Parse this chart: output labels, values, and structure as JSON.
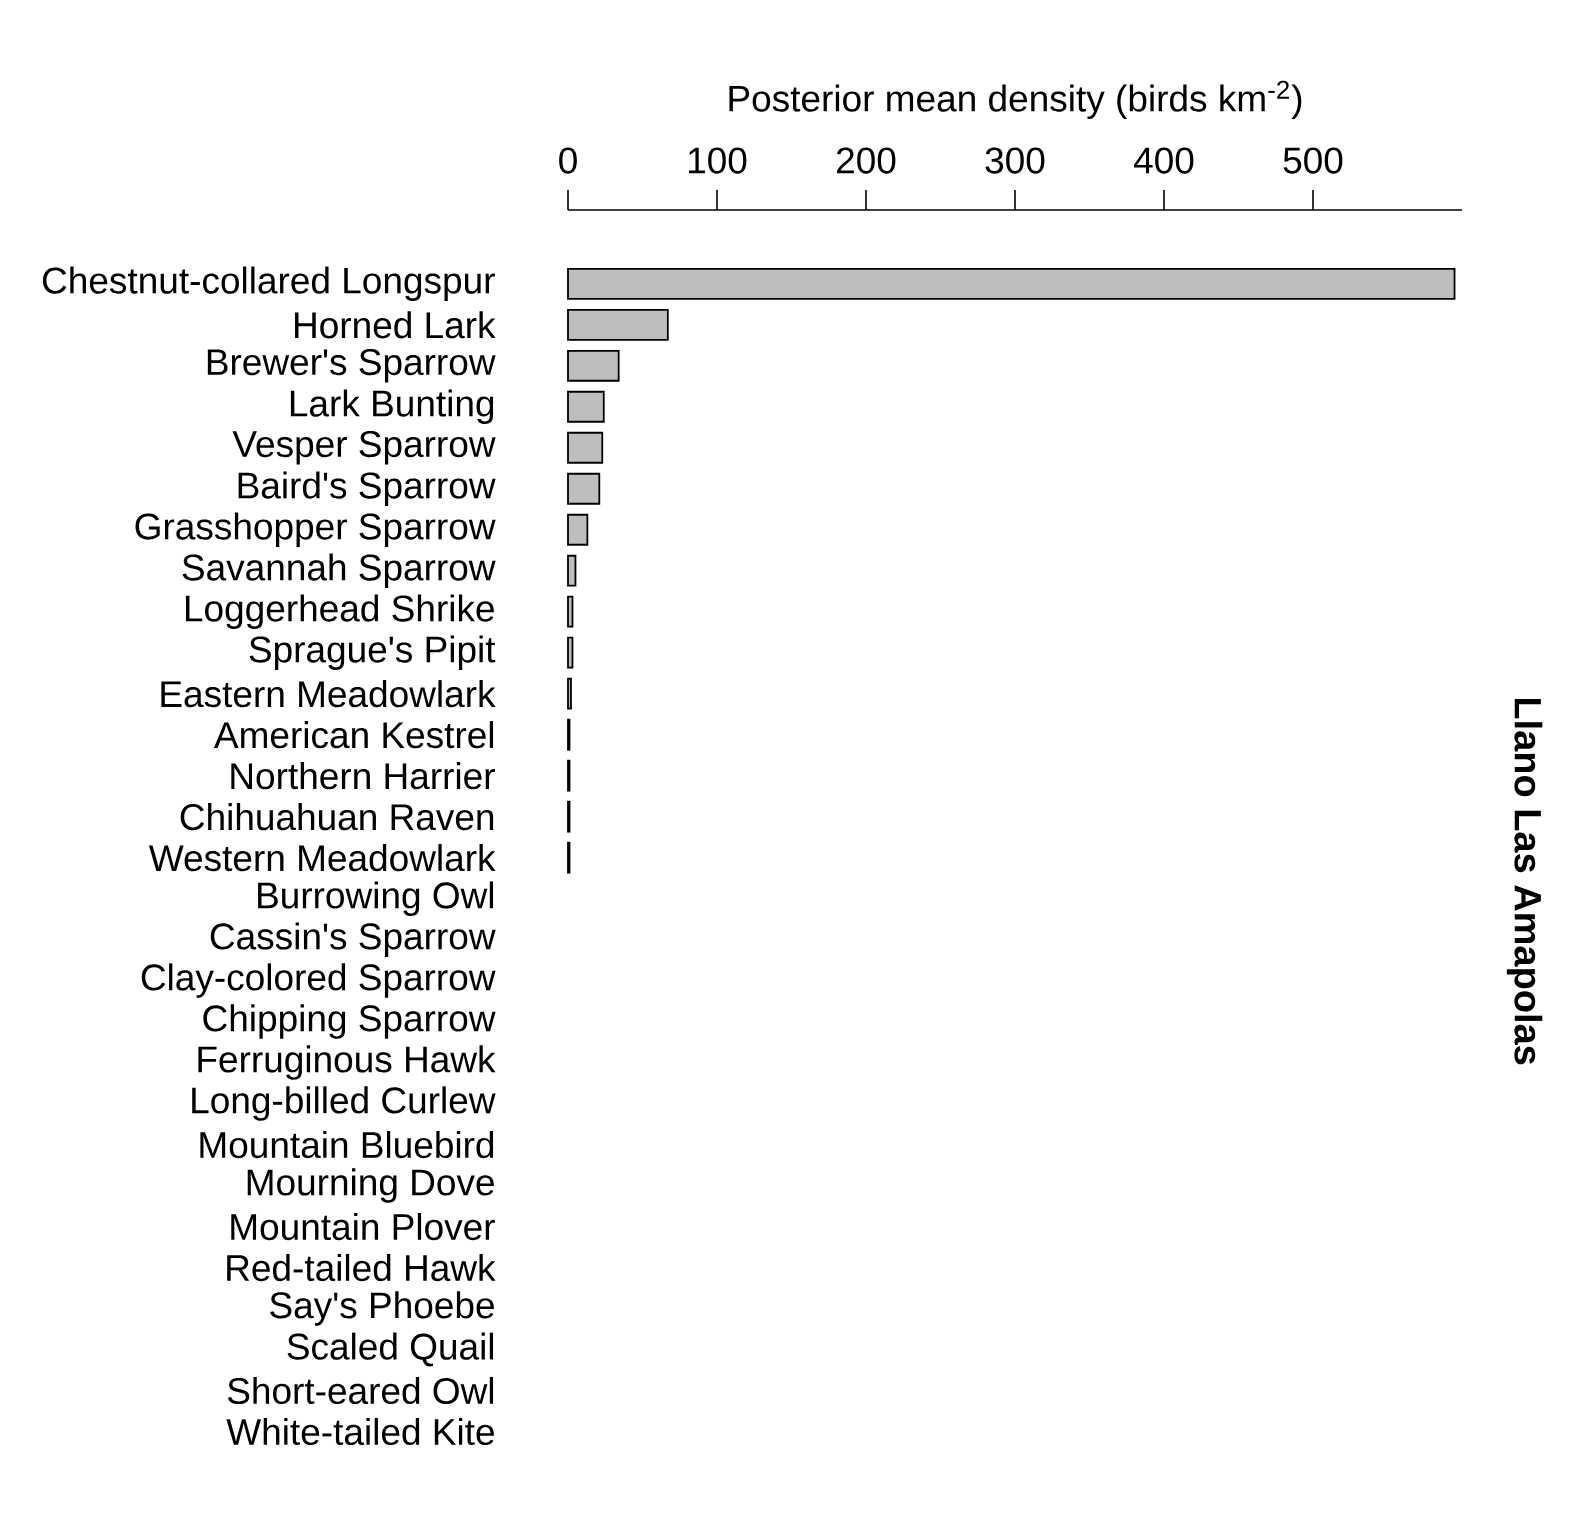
{
  "chart_data": {
    "type": "bar",
    "orientation": "horizontal",
    "title": "Llano Las Amapolas",
    "xlabel": "Posterior mean density (birds km$^{-2}$)",
    "categories": [
      "Chestnut-collared Longspur",
      "Horned Lark",
      "Brewer's Sparrow",
      "Lark Bunting",
      "Vesper Sparrow",
      "Baird's Sparrow",
      "Grasshopper Sparrow",
      "Savannah Sparrow",
      "Loggerhead Shrike",
      "Sprague's Pipit",
      "Eastern Meadowlark",
      "American Kestrel",
      "Northern Harrier",
      "Chihuahuan Raven",
      "Western Meadowlark",
      "Burrowing Owl",
      "Cassin's Sparrow",
      "Clay-colored Sparrow",
      "Chipping Sparrow",
      "Ferruginous Hawk",
      "Long-billed Curlew",
      "Mountain Bluebird",
      "Mourning Dove",
      "Mountain Plover",
      "Red-tailed Hawk",
      "Say's Phoebe",
      "Scaled Quail",
      "Short-eared Owl",
      "White-tailed Kite"
    ],
    "values": [
      595,
      67,
      34,
      24,
      23,
      21,
      13,
      5,
      3,
      3,
      2,
      1,
      1,
      1,
      1,
      null,
      null,
      null,
      null,
      null,
      null,
      null,
      null,
      null,
      null,
      null,
      null,
      null,
      null
    ],
    "color": "#bebebe",
    "xlim": [
      0,
      600
    ],
    "xticks": [
      0,
      100,
      200,
      300,
      400,
      500
    ]
  }
}
